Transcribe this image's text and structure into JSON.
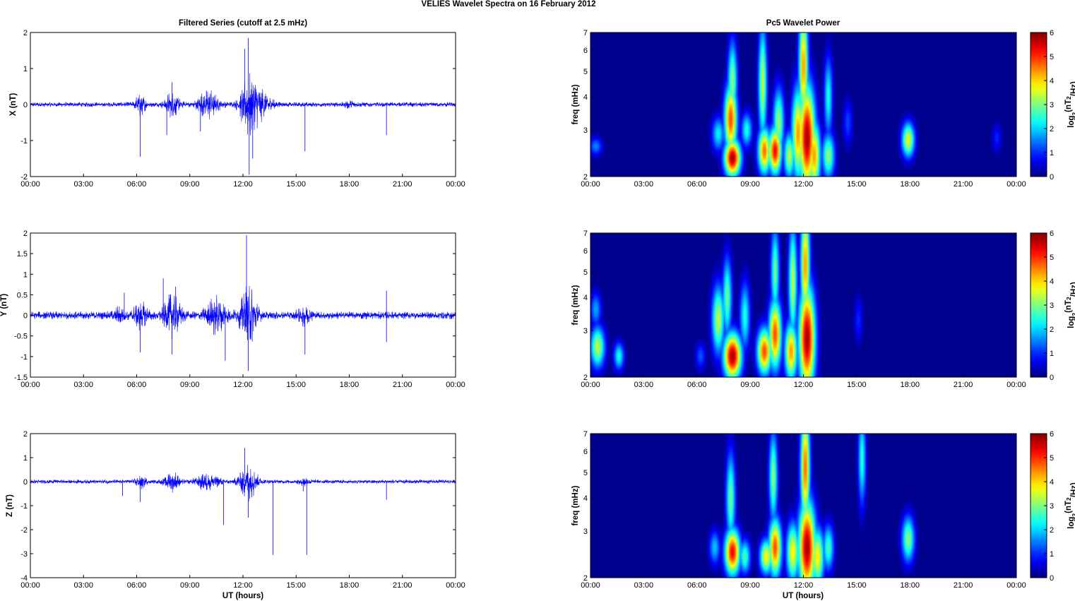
{
  "figure": {
    "suptitle": "VELIES Wavelet Spectra on 16 February  2012",
    "left_title": "Filtered Series (cutoff at 2.5 mHz)",
    "right_title": "Pc5 Wavelet Power",
    "xlabel": "UT (hours)",
    "freq_label": "freq (mHz)",
    "cbar_label_html": "log2(nT2/Hz)"
  },
  "chart_data": [
    {
      "type": "line",
      "title": "Filtered Series (cutoff at 2.5 mHz)",
      "ylabel": "X (nT)",
      "xlabel": "",
      "x_ticks": [
        "00:00",
        "03:00",
        "06:00",
        "09:00",
        "12:00",
        "15:00",
        "18:00",
        "21:00",
        "00:00"
      ],
      "xlim_hours": [
        0,
        24
      ],
      "ylim": [
        -2,
        2
      ],
      "y_ticks": [
        "2",
        "1",
        "0",
        "-1",
        "-2"
      ],
      "y_tick_values": [
        2,
        1,
        0,
        -1,
        -2
      ],
      "series_color": "#0000ff",
      "noise_floor": 0.07,
      "bursts": [
        {
          "t": 6.2,
          "amp": 0.3,
          "w": 0.3
        },
        {
          "t": 8.0,
          "amp": 0.35,
          "w": 0.4
        },
        {
          "t": 10.0,
          "amp": 0.4,
          "w": 0.6
        },
        {
          "t": 12.3,
          "amp": 0.9,
          "w": 0.45
        },
        {
          "t": 13.0,
          "amp": 0.4,
          "w": 0.6
        },
        {
          "t": 18.0,
          "amp": 0.08,
          "w": 0.3
        }
      ],
      "spikes": [
        {
          "t": 6.2,
          "v": -1.45
        },
        {
          "t": 7.7,
          "v": -0.85
        },
        {
          "t": 8.0,
          "v": 0.62
        },
        {
          "t": 9.6,
          "v": -0.75
        },
        {
          "t": 12.1,
          "v": 1.55
        },
        {
          "t": 12.3,
          "v": 1.85
        },
        {
          "t": 12.35,
          "v": -1.95
        },
        {
          "t": 12.55,
          "v": -1.5
        },
        {
          "t": 15.5,
          "v": -1.3
        },
        {
          "t": 20.1,
          "v": -0.85
        }
      ]
    },
    {
      "type": "line",
      "title": "",
      "ylabel": "Y (nT)",
      "xlabel": "",
      "x_ticks": [
        "00:00",
        "03:00",
        "06:00",
        "09:00",
        "12:00",
        "15:00",
        "18:00",
        "21:00",
        "00:00"
      ],
      "xlim_hours": [
        0,
        24
      ],
      "ylim": [
        -1.5,
        2
      ],
      "y_ticks": [
        "2",
        "1.5",
        "1",
        "0.5",
        "0",
        "-0.5",
        "-1",
        "-1.5"
      ],
      "y_tick_values": [
        2,
        1.5,
        1,
        0.5,
        0,
        -0.5,
        -1,
        -1.5
      ],
      "series_color": "#0000ff",
      "noise_floor": 0.1,
      "bursts": [
        {
          "t": 5.0,
          "amp": 0.15,
          "w": 0.3
        },
        {
          "t": 6.2,
          "amp": 0.3,
          "w": 0.4
        },
        {
          "t": 8.0,
          "amp": 0.5,
          "w": 0.5
        },
        {
          "t": 10.5,
          "amp": 0.45,
          "w": 0.6
        },
        {
          "t": 12.3,
          "amp": 0.8,
          "w": 0.45
        },
        {
          "t": 15.5,
          "amp": 0.2,
          "w": 0.4
        }
      ],
      "spikes": [
        {
          "t": 5.3,
          "v": 0.55
        },
        {
          "t": 6.2,
          "v": -0.9
        },
        {
          "t": 7.5,
          "v": 0.9
        },
        {
          "t": 8.0,
          "v": -0.95
        },
        {
          "t": 8.2,
          "v": 0.7
        },
        {
          "t": 11.0,
          "v": -1.1
        },
        {
          "t": 12.2,
          "v": 1.95
        },
        {
          "t": 12.3,
          "v": -1.35
        },
        {
          "t": 15.5,
          "v": -0.95
        },
        {
          "t": 20.1,
          "v": 0.6
        },
        {
          "t": 20.1,
          "v": -0.65
        }
      ]
    },
    {
      "type": "line",
      "title": "",
      "ylabel": "Z (nT)",
      "xlabel": "UT (hours)",
      "x_ticks": [
        "00:00",
        "03:00",
        "06:00",
        "09:00",
        "12:00",
        "15:00",
        "18:00",
        "21:00",
        "00:00"
      ],
      "xlim_hours": [
        0,
        24
      ],
      "ylim": [
        -4,
        2
      ],
      "y_ticks": [
        "2",
        "1",
        "0",
        "-1",
        "-2",
        "-3",
        "-4"
      ],
      "y_tick_values": [
        2,
        1,
        0,
        -1,
        -2,
        -3,
        -4
      ],
      "series_color": "#0000ff",
      "noise_floor": 0.09,
      "bursts": [
        {
          "t": 6.2,
          "amp": 0.3,
          "w": 0.3
        },
        {
          "t": 8.0,
          "amp": 0.45,
          "w": 0.4
        },
        {
          "t": 10.0,
          "amp": 0.4,
          "w": 0.6
        },
        {
          "t": 12.3,
          "amp": 0.8,
          "w": 0.5
        },
        {
          "t": 15.5,
          "amp": 0.2,
          "w": 0.3
        }
      ],
      "spikes": [
        {
          "t": 5.2,
          "v": -0.6
        },
        {
          "t": 6.2,
          "v": -0.85
        },
        {
          "t": 10.9,
          "v": -1.8
        },
        {
          "t": 12.1,
          "v": 1.4
        },
        {
          "t": 12.3,
          "v": -1.5
        },
        {
          "t": 13.7,
          "v": -3.05
        },
        {
          "t": 15.6,
          "v": -3.05
        },
        {
          "t": 15.4,
          "v": -0.4
        },
        {
          "t": 20.1,
          "v": -0.75
        }
      ]
    },
    {
      "type": "heatmap",
      "title": "Pc5 Wavelet Power",
      "ylabel": "freq (mHz)",
      "xlabel": "",
      "x_ticks": [
        "00:00",
        "03:00",
        "06:00",
        "09:00",
        "12:00",
        "15:00",
        "18:00",
        "21:00",
        "00:00"
      ],
      "xlim_hours": [
        0,
        24
      ],
      "ylim_mHz": [
        2,
        7
      ],
      "y_scale": "log",
      "y_ticks": [
        "7",
        "6",
        "5",
        "4",
        "3",
        "2"
      ],
      "y_tick_values": [
        7,
        6,
        5,
        4,
        3,
        2
      ],
      "colormap": "jet",
      "colorbar_range": [
        0,
        6
      ],
      "colorbar_ticks": [
        "6",
        "5",
        "4",
        "3",
        "2",
        "1",
        "0"
      ],
      "colorbar_label": "log2(nT2/Hz)",
      "blobs": [
        {
          "t": 0.3,
          "f": 2.6,
          "amp": 1.6,
          "tw": 0.1,
          "fw": 0.08
        },
        {
          "t": 7.2,
          "f": 2.9,
          "amp": 2.3,
          "tw": 0.1,
          "fw": 0.15
        },
        {
          "t": 8.0,
          "f": 2.35,
          "amp": 6.0,
          "tw": 0.14,
          "fw": 0.16
        },
        {
          "t": 7.9,
          "f": 3.3,
          "amp": 5.0,
          "tw": 0.1,
          "fw": 0.3
        },
        {
          "t": 8.0,
          "f": 4.6,
          "amp": 3.2,
          "tw": 0.06,
          "fw": 0.35
        },
        {
          "t": 8.8,
          "f": 3.0,
          "amp": 2.5,
          "tw": 0.08,
          "fw": 0.15
        },
        {
          "t": 9.8,
          "f": 2.5,
          "amp": 4.8,
          "tw": 0.1,
          "fw": 0.2
        },
        {
          "t": 9.7,
          "f": 4.5,
          "amp": 3.5,
          "tw": 0.05,
          "fw": 0.5
        },
        {
          "t": 10.4,
          "f": 2.5,
          "amp": 5.5,
          "tw": 0.1,
          "fw": 0.2
        },
        {
          "t": 10.6,
          "f": 3.2,
          "amp": 3.3,
          "tw": 0.08,
          "fw": 0.3
        },
        {
          "t": 11.2,
          "f": 2.4,
          "amp": 3.5,
          "tw": 0.08,
          "fw": 0.2
        },
        {
          "t": 11.7,
          "f": 2.9,
          "amp": 4.5,
          "tw": 0.1,
          "fw": 0.4
        },
        {
          "t": 12.2,
          "f": 2.8,
          "amp": 6.0,
          "tw": 0.14,
          "fw": 0.45
        },
        {
          "t": 12.0,
          "f": 5.2,
          "amp": 4.5,
          "tw": 0.06,
          "fw": 0.5
        },
        {
          "t": 12.6,
          "f": 2.4,
          "amp": 4.5,
          "tw": 0.1,
          "fw": 0.3
        },
        {
          "t": 13.4,
          "f": 2.4,
          "amp": 3.2,
          "tw": 0.1,
          "fw": 0.2
        },
        {
          "t": 13.4,
          "f": 4.0,
          "amp": 2.5,
          "tw": 0.05,
          "fw": 0.35
        },
        {
          "t": 14.5,
          "f": 3.2,
          "amp": 1.2,
          "tw": 0.06,
          "fw": 0.2
        },
        {
          "t": 17.9,
          "f": 2.75,
          "amp": 3.8,
          "tw": 0.1,
          "fw": 0.15
        },
        {
          "t": 22.9,
          "f": 2.8,
          "amp": 1.0,
          "tw": 0.06,
          "fw": 0.12
        }
      ]
    },
    {
      "type": "heatmap",
      "title": "",
      "ylabel": "freq (mHz)",
      "xlabel": "",
      "x_ticks": [
        "00:00",
        "03:00",
        "06:00",
        "09:00",
        "12:00",
        "15:00",
        "18:00",
        "21:00",
        "00:00"
      ],
      "xlim_hours": [
        0,
        24
      ],
      "ylim_mHz": [
        2,
        7
      ],
      "y_scale": "log",
      "y_ticks": [
        "7",
        "6",
        "5",
        "4",
        "3",
        "2"
      ],
      "y_tick_values": [
        7,
        6,
        5,
        4,
        3,
        2
      ],
      "colormap": "jet",
      "colorbar_range": [
        0,
        6
      ],
      "colorbar_ticks": [
        "6",
        "5",
        "4",
        "3",
        "2",
        "1",
        "0"
      ],
      "colorbar_label": "log2(nT2/Hz)",
      "blobs": [
        {
          "t": 0.4,
          "f": 2.6,
          "amp": 3.5,
          "tw": 0.12,
          "fw": 0.18
        },
        {
          "t": 0.3,
          "f": 3.6,
          "amp": 1.8,
          "tw": 0.08,
          "fw": 0.15
        },
        {
          "t": 1.6,
          "f": 2.4,
          "amp": 2.5,
          "tw": 0.07,
          "fw": 0.12
        },
        {
          "t": 6.2,
          "f": 2.4,
          "amp": 1.3,
          "tw": 0.07,
          "fw": 0.12
        },
        {
          "t": 7.2,
          "f": 3.3,
          "amp": 3.5,
          "tw": 0.1,
          "fw": 0.3
        },
        {
          "t": 8.0,
          "f": 2.4,
          "amp": 6.0,
          "tw": 0.16,
          "fw": 0.2
        },
        {
          "t": 7.7,
          "f": 4.0,
          "amp": 3.0,
          "tw": 0.06,
          "fw": 0.35
        },
        {
          "t": 8.7,
          "f": 3.4,
          "amp": 2.5,
          "tw": 0.07,
          "fw": 0.3
        },
        {
          "t": 9.8,
          "f": 2.5,
          "amp": 5.0,
          "tw": 0.12,
          "fw": 0.2
        },
        {
          "t": 10.4,
          "f": 2.9,
          "amp": 5.0,
          "tw": 0.1,
          "fw": 0.3
        },
        {
          "t": 10.4,
          "f": 5.0,
          "amp": 3.0,
          "tw": 0.05,
          "fw": 0.4
        },
        {
          "t": 11.3,
          "f": 2.5,
          "amp": 4.5,
          "tw": 0.1,
          "fw": 0.25
        },
        {
          "t": 11.4,
          "f": 4.6,
          "amp": 3.5,
          "tw": 0.05,
          "fw": 0.5
        },
        {
          "t": 12.2,
          "f": 2.8,
          "amp": 6.0,
          "tw": 0.14,
          "fw": 0.45
        },
        {
          "t": 12.1,
          "f": 5.3,
          "amp": 4.5,
          "tw": 0.06,
          "fw": 0.5
        },
        {
          "t": 15.1,
          "f": 3.3,
          "amp": 1.0,
          "tw": 0.05,
          "fw": 0.2
        }
      ]
    },
    {
      "type": "heatmap",
      "title": "",
      "ylabel": "freq (mHz)",
      "xlabel": "UT (hours)",
      "x_ticks": [
        "00:00",
        "03:00",
        "06:00",
        "09:00",
        "12:00",
        "15:00",
        "18:00",
        "21:00",
        "00:00"
      ],
      "xlim_hours": [
        0,
        24
      ],
      "ylim_mHz": [
        2,
        7
      ],
      "y_scale": "log",
      "y_ticks": [
        "7",
        "6",
        "5",
        "4",
        "3",
        "2"
      ],
      "y_tick_values": [
        7,
        6,
        5,
        4,
        3,
        2
      ],
      "colormap": "jet",
      "colorbar_range": [
        0,
        6
      ],
      "colorbar_ticks": [
        "6",
        "5",
        "4",
        "3",
        "2",
        "1",
        "0"
      ],
      "colorbar_label": "log2(nT2/Hz)",
      "blobs": [
        {
          "t": 7.0,
          "f": 2.6,
          "amp": 2.0,
          "tw": 0.08,
          "fw": 0.15
        },
        {
          "t": 8.0,
          "f": 2.5,
          "amp": 5.5,
          "tw": 0.13,
          "fw": 0.2
        },
        {
          "t": 7.9,
          "f": 4.0,
          "amp": 3.0,
          "tw": 0.06,
          "fw": 0.4
        },
        {
          "t": 8.7,
          "f": 2.4,
          "amp": 2.8,
          "tw": 0.08,
          "fw": 0.15
        },
        {
          "t": 9.9,
          "f": 2.4,
          "amp": 4.0,
          "tw": 0.1,
          "fw": 0.15
        },
        {
          "t": 10.4,
          "f": 2.6,
          "amp": 5.0,
          "tw": 0.1,
          "fw": 0.25
        },
        {
          "t": 10.3,
          "f": 4.8,
          "amp": 3.2,
          "tw": 0.05,
          "fw": 0.4
        },
        {
          "t": 11.4,
          "f": 2.5,
          "amp": 4.0,
          "tw": 0.1,
          "fw": 0.25
        },
        {
          "t": 12.2,
          "f": 2.6,
          "amp": 6.0,
          "tw": 0.15,
          "fw": 0.4
        },
        {
          "t": 12.1,
          "f": 5.2,
          "amp": 4.8,
          "tw": 0.06,
          "fw": 0.5
        },
        {
          "t": 12.8,
          "f": 2.4,
          "amp": 4.0,
          "tw": 0.1,
          "fw": 0.25
        },
        {
          "t": 13.4,
          "f": 2.6,
          "amp": 2.8,
          "tw": 0.08,
          "fw": 0.2
        },
        {
          "t": 15.3,
          "f": 5.6,
          "amp": 2.6,
          "tw": 0.04,
          "fw": 0.4
        },
        {
          "t": 17.9,
          "f": 2.8,
          "amp": 3.2,
          "tw": 0.1,
          "fw": 0.2
        }
      ]
    }
  ]
}
